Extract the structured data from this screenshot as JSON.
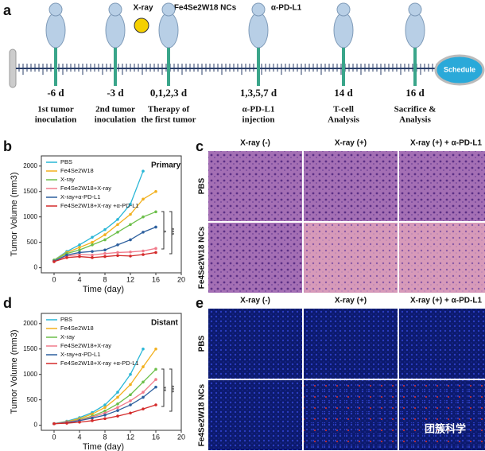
{
  "panel_labels": [
    "a",
    "b",
    "c",
    "d",
    "e"
  ],
  "timeline": {
    "treatments": [
      "X-ray",
      "Fe4Se2W18 NCs",
      "α-PD-L1"
    ],
    "badge": "Schedule",
    "events": [
      {
        "day": "-6 d",
        "label": [
          "1st tumor",
          "inoculation"
        ]
      },
      {
        "day": "-3 d",
        "label": [
          "2nd tumor",
          "inoculation"
        ]
      },
      {
        "day": "0,1,2,3 d",
        "label": [
          "Therapy of",
          "the first tumor"
        ]
      },
      {
        "day": "1,3,5,7 d",
        "label": [
          "α-PD-L1",
          "injection"
        ]
      },
      {
        "day": "14 d",
        "label": [
          "T-cell",
          "Analysis"
        ]
      },
      {
        "day": "16 d",
        "label": [
          "Sacrifice &",
          "Analysis"
        ]
      }
    ]
  },
  "chart_data": [
    {
      "type": "line",
      "title": "Primary",
      "xlabel": "Time (day)",
      "ylabel": "Tumor Volume (mm3)",
      "x": [
        0,
        2,
        4,
        6,
        8,
        10,
        12,
        14,
        16
      ],
      "xlim": [
        -2,
        20
      ],
      "xticks": [
        0,
        4,
        8,
        12,
        16,
        20
      ],
      "ylim": [
        -100,
        2200
      ],
      "yticks": [
        0,
        500,
        1000,
        1500,
        2000
      ],
      "legend": "upper left",
      "annotations": [
        "*",
        "***"
      ],
      "series": [
        {
          "name": "PBS",
          "color": "#29b6d6",
          "values": [
            150,
            320,
            450,
            600,
            750,
            950,
            1250,
            1900,
            null
          ]
        },
        {
          "name": "Fe4Se2W18",
          "color": "#f2b01e",
          "values": [
            150,
            300,
            400,
            500,
            650,
            850,
            1050,
            1350,
            1500
          ]
        },
        {
          "name": "X-ray",
          "color": "#6cbf4a",
          "values": [
            150,
            280,
            350,
            450,
            550,
            700,
            850,
            1000,
            1100
          ]
        },
        {
          "name": "Fe4Se2W18+X-ray",
          "color": "#f07a8a",
          "values": [
            130,
            230,
            260,
            250,
            280,
            300,
            310,
            330,
            380
          ]
        },
        {
          "name": "X-ray+α-PD-L1",
          "color": "#2c5f9e",
          "values": [
            130,
            250,
            300,
            320,
            350,
            450,
            550,
            700,
            800
          ]
        },
        {
          "name": "Fe4Se2W18+X-ray +α-PD-L1",
          "color": "#d42a2a",
          "values": [
            120,
            200,
            220,
            200,
            220,
            240,
            230,
            260,
            300
          ]
        }
      ]
    },
    {
      "type": "line",
      "title": "Distant",
      "xlabel": "Time (day)",
      "ylabel": "Tumor Volume (mm3)",
      "x": [
        0,
        2,
        4,
        6,
        8,
        10,
        12,
        14,
        16
      ],
      "xlim": [
        -2,
        20
      ],
      "xticks": [
        0,
        4,
        8,
        12,
        16,
        20
      ],
      "ylim": [
        -100,
        2200
      ],
      "yticks": [
        0,
        500,
        1000,
        1500,
        2000
      ],
      "legend": "upper left",
      "annotations": [
        "**",
        "***"
      ],
      "series": [
        {
          "name": "PBS",
          "color": "#29b6d6",
          "values": [
            30,
            80,
            150,
            250,
            400,
            650,
            1000,
            1500,
            null
          ]
        },
        {
          "name": "Fe4Se2W18",
          "color": "#f2b01e",
          "values": [
            30,
            70,
            130,
            220,
            350,
            550,
            800,
            1150,
            1500
          ]
        },
        {
          "name": "X-ray",
          "color": "#6cbf4a",
          "values": [
            30,
            60,
            110,
            180,
            280,
            420,
            600,
            850,
            1100
          ]
        },
        {
          "name": "Fe4Se2W18+X-ray",
          "color": "#f07a8a",
          "values": [
            30,
            60,
            100,
            160,
            240,
            350,
            480,
            650,
            900
          ]
        },
        {
          "name": "X-ray+α-PD-L1",
          "color": "#2c5f9e",
          "values": [
            30,
            50,
            90,
            140,
            200,
            290,
            400,
            550,
            750
          ]
        },
        {
          "name": "Fe4Se2W18+X-ray +α-PD-L1",
          "color": "#d42a2a",
          "values": [
            30,
            40,
            60,
            90,
            130,
            180,
            240,
            320,
            400
          ]
        }
      ]
    }
  ],
  "histology": [
    {
      "columns": [
        "X-ray (-)",
        "X-ray (+)",
        "X-ray (+) + α-PD-L1"
      ],
      "rows": [
        "PBS",
        "Fe4Se2W18 NCs"
      ]
    },
    {
      "columns": [
        "X-ray (-)",
        "X-ray (+)",
        "X-ray (+) + α-PD-L1"
      ],
      "rows": [
        "PBS",
        "Fe4Se2W18 NCs"
      ]
    }
  ],
  "watermark": "团簇科学"
}
